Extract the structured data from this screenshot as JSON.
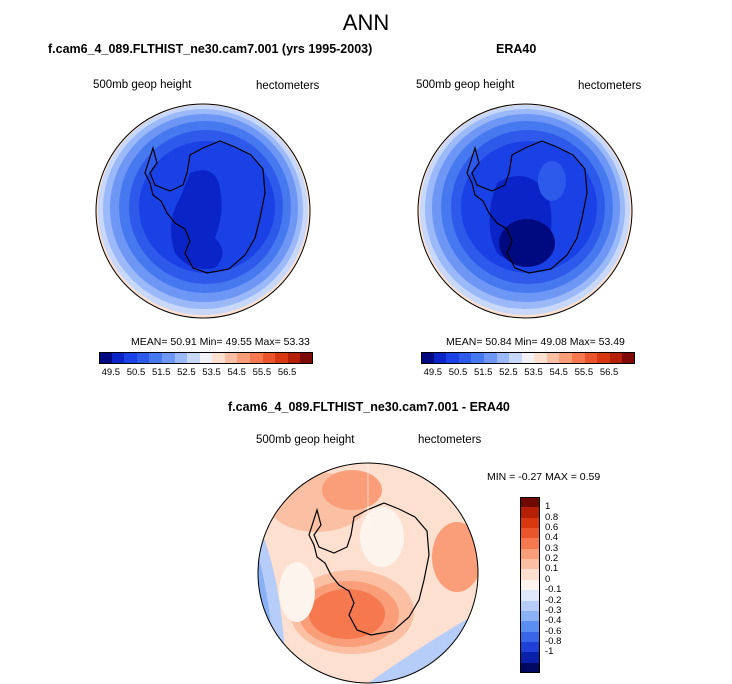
{
  "page_title": "ANN",
  "panel1": {
    "title": "f.cam6_4_089.FLTHIST_ne30.cam7.001 (yrs 1995-2003)",
    "variable": "500mb geop height",
    "units": "hectometers",
    "stats": "MEAN=  50.91  Min=  49.55  Max=  53.33"
  },
  "panel2": {
    "title": "ERA40",
    "variable": "500mb geop height",
    "units": "hectometers",
    "stats": "MEAN=  50.84  Min=  49.08  Max=  53.49"
  },
  "panel3": {
    "title": "f.cam6_4_089.FLTHIST_ne30.cam7.001 - ERA40",
    "variable": "500mb geop height",
    "units": "hectometers",
    "stats": "MIN =  -0.27 MAX =   0.59"
  },
  "abs_colorbar": {
    "labels": [
      "49.5",
      "50.5",
      "51.5",
      "52.5",
      "53.5",
      "54.5",
      "55.5",
      "56.5"
    ],
    "colors": [
      "#000a80",
      "#0a24c8",
      "#1a41e6",
      "#2d5aeb",
      "#4678f0",
      "#6e96f5",
      "#9bb9f8",
      "#c8d8fb",
      "#f2f2f6",
      "#fde0cf",
      "#fbc0a3",
      "#f99e78",
      "#f5784f",
      "#ea552c",
      "#d8380f",
      "#b51f05",
      "#7d0a02"
    ]
  },
  "diff_colorbar": {
    "labels": [
      "1",
      "0.8",
      "0.6",
      "0.4",
      "0.3",
      "0.2",
      "0.1",
      "0",
      "-0.1",
      "-0.2",
      "-0.3",
      "-0.4",
      "-0.6",
      "-0.8",
      "-1"
    ],
    "colors": [
      "#6f0a00",
      "#b51f05",
      "#d8380f",
      "#ea552c",
      "#f5784f",
      "#f99e78",
      "#fbc0a3",
      "#fde0cf",
      "#fdf4ee",
      "#dfe8fb",
      "#b7cdf9",
      "#8ab0f6",
      "#5a8ef2",
      "#3866e6",
      "#1f3fd6",
      "#0a20a8",
      "#000a60"
    ]
  }
}
